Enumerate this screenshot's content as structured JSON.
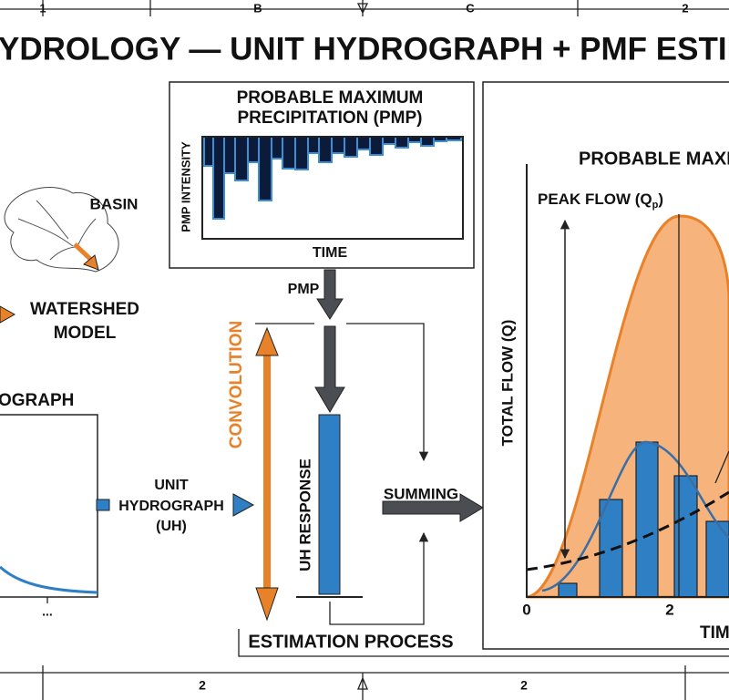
{
  "frame": {
    "top_labels": [
      "1",
      "B",
      "C",
      "2"
    ],
    "bottom_labels": [
      "2",
      "2"
    ]
  },
  "title": "YDROLOGY — UNIT HYDROGRAPH + PMF ESTIMATIO",
  "pmp_panel": {
    "title_lines": [
      "PROBABLE MAXIMUM",
      "PRECIPITATION (PMP)"
    ],
    "y_label": "PMP INTENSITY",
    "x_label": "TIME"
  },
  "basin_label": "BASIN",
  "watershed_model_lines": [
    "WATERSHED",
    "MODEL"
  ],
  "hydrograph_panel": {
    "title": "OGRAPH",
    "ellipsis": "..."
  },
  "uh_label_lines": [
    "UNIT",
    "HYDROGRAPH",
    "(UH)"
  ],
  "pmp_arrow_label": "PMP",
  "convolution_label": "CONVOLUTION",
  "uh_response_label": "UH RESPONSE",
  "summing_label": "SUMMING",
  "estimation_label": "ESTIMATION PROCESS",
  "pmf_panel": {
    "title": "PROBABLE MAXI",
    "peak_flow": {
      "main": "PEAK FLOW (Q",
      "sub": "p",
      "close": ")"
    },
    "y_label": "TOTAL FLOW (Q)",
    "x_ticks": [
      "0",
      "2"
    ],
    "x_label": "TIM"
  }
}
